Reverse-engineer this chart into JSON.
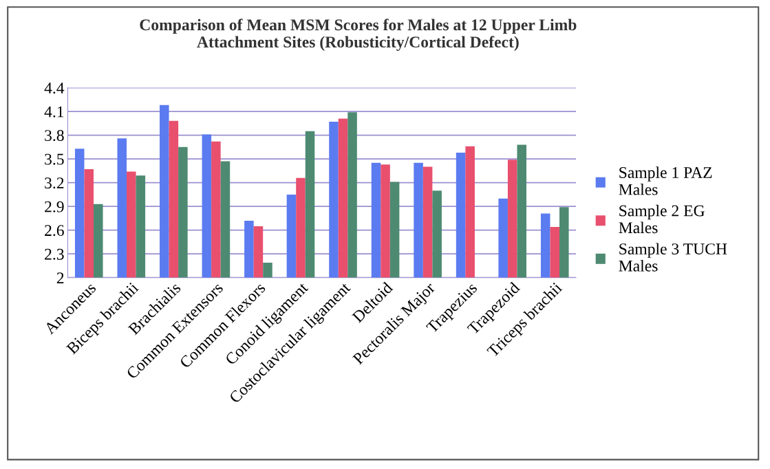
{
  "chart_data": {
    "type": "bar",
    "title": "Comparison of Mean MSM Scores for Males at 12 Upper Limb\nAttachment Sites (Robusticity/Cortical Defect)",
    "categories": [
      "Anconeus",
      "Biceps brachii",
      "Brachialis",
      "Common Extensors",
      "Common Flexors",
      "Conoid ligament",
      "Costoclavicular ligament",
      "Deltoid",
      "Pectoralis Major",
      "Trapezius",
      "Trapezoid",
      "Triceps brachii"
    ],
    "series": [
      {
        "name": "Sample 1 PAZ\nMales",
        "color": "#5b7bf0",
        "values": [
          3.63,
          3.76,
          4.18,
          3.81,
          2.72,
          3.05,
          3.97,
          3.45,
          3.45,
          3.58,
          3.0,
          2.81
        ]
      },
      {
        "name": "Sample 2 EG\nMales",
        "color": "#e8506e",
        "values": [
          3.37,
          3.34,
          3.98,
          3.72,
          2.65,
          3.26,
          4.01,
          3.43,
          3.4,
          3.66,
          3.49,
          2.64
        ]
      },
      {
        "name": "Sample 3 TUCH\nMales",
        "color": "#4e8a72",
        "values": [
          2.93,
          3.29,
          3.65,
          3.47,
          2.19,
          3.85,
          4.09,
          3.21,
          3.1,
          null,
          3.68,
          2.89
        ]
      }
    ],
    "ylim": [
      2,
      4.4
    ],
    "yticks": [
      2,
      2.3,
      2.6,
      2.9,
      3.2,
      3.5,
      3.8,
      4.1,
      4.4
    ],
    "grid": "y",
    "legend": "right"
  }
}
